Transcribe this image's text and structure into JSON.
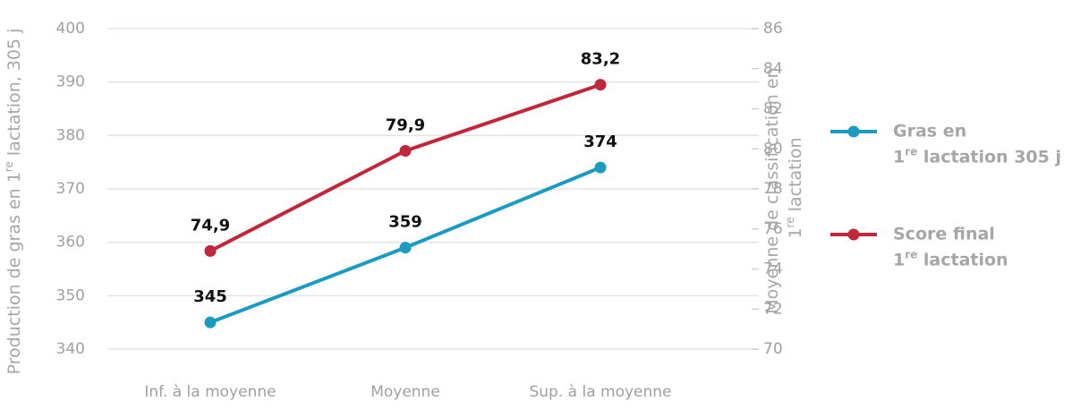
{
  "chart_data": {
    "type": "line",
    "categories": [
      "Inf. à la moyenne",
      "Moyenne",
      "Sup. à la moyenne"
    ],
    "ylabel": "Production de gras en 1re lactation, 305 j",
    "y2label": "Moyenne de classification en 1re lactation",
    "ylim": [
      340,
      400
    ],
    "yticks": [
      340,
      350,
      360,
      370,
      380,
      390,
      400
    ],
    "y2lim": [
      70,
      86
    ],
    "y2ticks": [
      70,
      72,
      74,
      76,
      78,
      80,
      82,
      84,
      86
    ],
    "grid": true,
    "legend": "right",
    "series": [
      {
        "name": "Gras en 1re lactation 305 j",
        "color": "#1a9bbf",
        "values": [
          345,
          359,
          374
        ]
      },
      {
        "name": "Score final 1re lactation",
        "color": "#c0273a",
        "axis": "y2",
        "values": [
          74.9,
          79.9,
          83.2
        ],
        "value_labels": [
          "74,9",
          "79,9",
          "83,2"
        ]
      }
    ]
  }
}
